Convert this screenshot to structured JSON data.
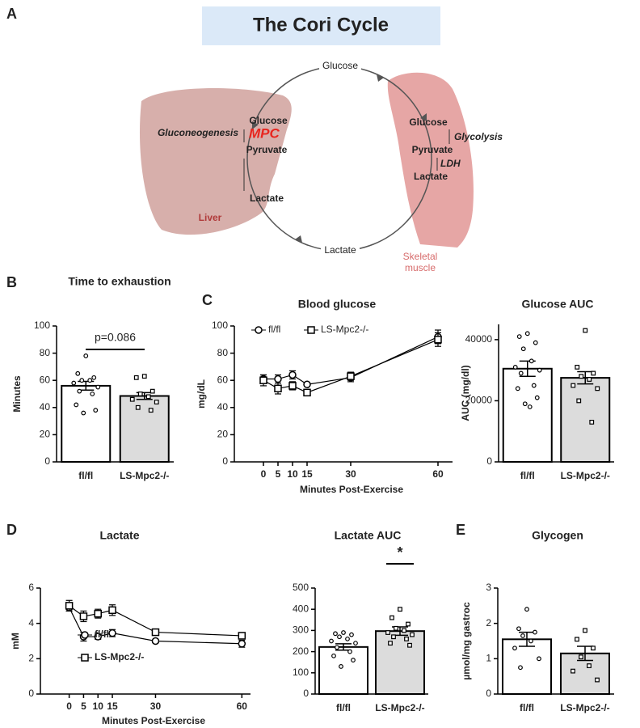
{
  "panel_labels": [
    "A",
    "B",
    "C",
    "D",
    "E"
  ],
  "diagram": {
    "title": "The Cori Cycle",
    "top": "Glucose",
    "bottom": "Lactate",
    "liver": {
      "name": "Liver",
      "glucose": "Glucose",
      "pathway": "Gluconeogenesis",
      "transporter": "MPC",
      "pyruvate": "Pyruvate",
      "lactate": "Lactate"
    },
    "muscle": {
      "name": [
        "Skeletal",
        "muscle"
      ],
      "glucose": "Glucose",
      "pathway": "Glycolysis",
      "pyruvate": "Pyruvate",
      "enzyme": "LDH",
      "lactate": "Lactate"
    }
  },
  "chart_data": [
    {
      "type": "bar",
      "title": "Time to exhaustion",
      "ylabel": "Minutes",
      "categories": [
        "fl/fl",
        "LS-Mpc2-/-"
      ],
      "values": [
        56,
        48.5
      ],
      "errors": [
        3.2,
        2.5
      ],
      "colors": [
        "#ffffff",
        "#dcdcdc"
      ],
      "point_markers": [
        "circle",
        "square"
      ],
      "points": [
        [
          78,
          65,
          62,
          60,
          60,
          58,
          55,
          52,
          50,
          42,
          38,
          36
        ],
        [
          63,
          62,
          52,
          50,
          48,
          46,
          44,
          40,
          38
        ]
      ],
      "ylim": [
        0,
        100
      ],
      "yticks": [
        0,
        20,
        40,
        60,
        80,
        100
      ],
      "annotation": "p=0.086"
    },
    {
      "type": "line",
      "title": "Blood glucose",
      "xlabel": "Minutes Post-Exercise",
      "ylabel": "mg/dL",
      "x": [
        0,
        5,
        10,
        15,
        30,
        60
      ],
      "series": [
        {
          "name": "fl/fl",
          "marker": "circle",
          "color": "#000000",
          "values": [
            61,
            61,
            64,
            57,
            62,
            92
          ],
          "errors": [
            3,
            3,
            3,
            1,
            3,
            5
          ]
        },
        {
          "name": "LS-Mpc2-/-",
          "marker": "square",
          "color": "#000000",
          "values": [
            60,
            54,
            56,
            51,
            63,
            90
          ],
          "errors": [
            4,
            4,
            3,
            1,
            3,
            5
          ]
        }
      ],
      "xlim": [
        -10,
        65
      ],
      "xticks": [
        0,
        5,
        10,
        15,
        30,
        60
      ],
      "ylim": [
        0,
        100
      ],
      "yticks": [
        0,
        20,
        40,
        60,
        80,
        100
      ],
      "legend": "upper left"
    },
    {
      "type": "bar",
      "title": "Glucose AUC",
      "ylabel": "AUC (mg/dl)",
      "categories": [
        "fl/fl",
        "LS-Mpc2-/-"
      ],
      "values": [
        30500,
        27500
      ],
      "errors": [
        2500,
        2000
      ],
      "colors": [
        "#ffffff",
        "#dcdcdc"
      ],
      "point_markers": [
        "circle",
        "square"
      ],
      "points": [
        [
          42000,
          41000,
          39000,
          37000,
          33000,
          31000,
          30000,
          29000,
          25000,
          24000,
          21000,
          19000,
          18000
        ],
        [
          43000,
          31000,
          29000,
          28000,
          27000,
          25000,
          24000,
          20000,
          13000
        ]
      ],
      "ylim": [
        0,
        45000
      ],
      "yticks": [
        0,
        20000,
        40000
      ]
    },
    {
      "type": "line",
      "title": "Lactate",
      "xlabel": "Minutes Post-Exercise",
      "ylabel": "mM",
      "x": [
        0,
        5,
        10,
        15,
        30,
        60
      ],
      "series": [
        {
          "name": "fl/fl",
          "marker": "circle",
          "color": "#000000",
          "values": [
            4.9,
            3.25,
            3.25,
            3.45,
            3.0,
            2.85
          ],
          "errors": [
            0.2,
            0.25,
            0.15,
            0.2,
            0.1,
            0.2
          ]
        },
        {
          "name": "LS-Mpc2-/-",
          "marker": "square",
          "color": "#000000",
          "values": [
            5.0,
            4.4,
            4.55,
            4.75,
            3.5,
            3.3
          ],
          "errors": [
            0.3,
            0.3,
            0.25,
            0.3,
            0.1,
            0.15
          ]
        }
      ],
      "xlim": [
        -10,
        63
      ],
      "xticks": [
        0,
        5,
        10,
        15,
        30,
        60
      ],
      "ylim": [
        0,
        6
      ],
      "yticks": [
        0,
        2,
        4,
        6
      ],
      "legend": "lower left"
    },
    {
      "type": "bar",
      "title": "Lactate AUC",
      "categories": [
        "fl/fl",
        "LS-Mpc2-/-"
      ],
      "values": [
        222,
        297
      ],
      "errors": [
        15,
        20
      ],
      "colors": [
        "#ffffff",
        "#dcdcdc"
      ],
      "point_markers": [
        "circle",
        "square"
      ],
      "points": [
        [
          290,
          285,
          280,
          270,
          260,
          250,
          240,
          220,
          200,
          180,
          160,
          130
        ],
        [
          400,
          360,
          330,
          310,
          300,
          290,
          280,
          270,
          260,
          240,
          230
        ]
      ],
      "ylim": [
        0,
        500
      ],
      "yticks": [
        0,
        100,
        200,
        300,
        400,
        500
      ],
      "annotation": "*"
    },
    {
      "type": "bar",
      "title": "Glycogen",
      "ylabel": "µmol/mg gastroc",
      "categories": [
        "fl/fl",
        "LS-Mpc2-/-"
      ],
      "values": [
        1.55,
        1.15
      ],
      "errors": [
        0.2,
        0.2
      ],
      "colors": [
        "#ffffff",
        "#dcdcdc"
      ],
      "point_markers": [
        "circle",
        "square"
      ],
      "points": [
        [
          2.4,
          1.85,
          1.75,
          1.65,
          1.5,
          1.3,
          1.0,
          0.75
        ],
        [
          1.8,
          1.55,
          1.3,
          1.05,
          0.8,
          0.65,
          0.4
        ]
      ],
      "ylim": [
        0,
        3
      ],
      "yticks": [
        0,
        1,
        2,
        3
      ]
    }
  ]
}
